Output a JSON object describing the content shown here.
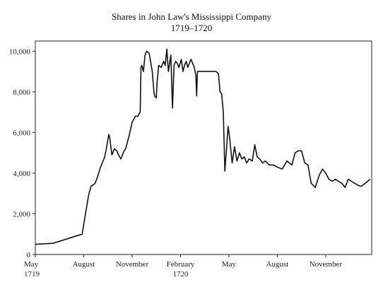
{
  "chart_data": {
    "type": "line",
    "title": "Shares in John Law's Mississippi Company",
    "subtitle": "1719–1720",
    "xlabel": "",
    "ylabel": "",
    "ylim": [
      0,
      10500
    ],
    "grid": false,
    "x_ticks": [
      {
        "label": "May",
        "sub": "1719",
        "month_index": 0
      },
      {
        "label": "August",
        "sub": "",
        "month_index": 3
      },
      {
        "label": "November",
        "sub": "",
        "month_index": 6
      },
      {
        "label": "February",
        "sub": "1720",
        "month_index": 9
      },
      {
        "label": "May",
        "sub": "",
        "month_index": 12
      },
      {
        "label": "August",
        "sub": "",
        "month_index": 15
      },
      {
        "label": "November",
        "sub": "",
        "month_index": 18
      }
    ],
    "y_ticks": [
      {
        "label": "0",
        "value": 0
      },
      {
        "label": "2,000",
        "value": 2000
      },
      {
        "label": "4,000",
        "value": 4000
      },
      {
        "label": "6,000",
        "value": 6000
      },
      {
        "label": "8,000",
        "value": 8000
      },
      {
        "label": "10,000",
        "value": 10000
      }
    ],
    "series": [
      {
        "x_month_index": [
          0.0,
          1.1,
          2.9,
          3.3,
          3.45,
          3.55,
          3.7,
          3.85,
          4.0,
          4.3,
          4.4,
          4.55,
          4.6,
          4.75,
          4.9,
          5.05,
          5.15,
          5.3,
          5.5,
          5.6,
          5.8,
          6.0,
          6.2,
          6.35,
          6.5,
          6.55,
          6.6,
          6.7,
          6.8,
          6.9,
          7.05,
          7.1,
          7.25,
          7.35,
          7.4,
          7.5,
          7.55,
          7.65,
          7.8,
          7.9,
          7.95,
          8.05,
          8.15,
          8.25,
          8.4,
          8.5,
          8.6,
          8.7,
          8.8,
          8.9,
          9.05,
          9.15,
          9.25,
          9.35,
          9.45,
          9.55,
          9.65,
          9.75,
          9.85,
          9.95,
          10.0,
          10.05,
          10.1,
          10.2,
          11.1,
          11.2,
          11.35,
          11.45,
          11.55,
          11.65,
          11.75,
          11.85,
          11.95,
          12.05,
          12.2,
          12.35,
          12.5,
          12.65,
          12.8,
          12.95,
          13.1,
          13.25,
          13.45,
          13.6,
          13.75,
          13.9,
          14.1,
          14.25,
          14.5,
          14.75,
          15.0,
          15.3,
          15.6,
          15.9,
          16.1,
          16.3,
          16.5,
          16.7,
          16.9,
          17.1,
          17.35,
          17.6,
          17.8,
          18.0,
          18.2,
          18.4,
          18.6,
          18.8,
          19.0,
          19.2,
          19.4,
          19.6,
          19.8,
          20.0,
          20.2,
          20.45,
          20.75
        ],
        "values": [
          500,
          550,
          1000,
          2900,
          3350,
          3400,
          3500,
          3800,
          4200,
          4800,
          5200,
          5900,
          5800,
          4900,
          5200,
          5100,
          4900,
          4700,
          5100,
          5200,
          5800,
          6500,
          6800,
          6800,
          7000,
          9200,
          9300,
          9000,
          9800,
          10000,
          9900,
          9700,
          9000,
          8000,
          7800,
          7700,
          8500,
          9300,
          9200,
          9400,
          9500,
          9300,
          10100,
          9000,
          9800,
          7200,
          9300,
          9500,
          9400,
          9200,
          9600,
          9000,
          9300,
          9500,
          9200,
          9400,
          9600,
          9400,
          9200,
          8800,
          7800,
          9000,
          9000,
          9000,
          9000,
          9000,
          8900,
          8000,
          7900,
          7000,
          4100,
          5200,
          6300,
          5700,
          4500,
          5300,
          4600,
          5000,
          4700,
          4800,
          4500,
          4700,
          4600,
          5400,
          4800,
          4700,
          4500,
          4600,
          4400,
          4400,
          4300,
          4200,
          4600,
          4400,
          5000,
          5100,
          5100,
          4500,
          4400,
          3500,
          3300,
          3900,
          4200,
          4000,
          3700,
          3600,
          3700,
          3600,
          3500,
          3300,
          3700,
          3600,
          3500,
          3400,
          3350,
          3500,
          3700
        ]
      }
    ]
  }
}
